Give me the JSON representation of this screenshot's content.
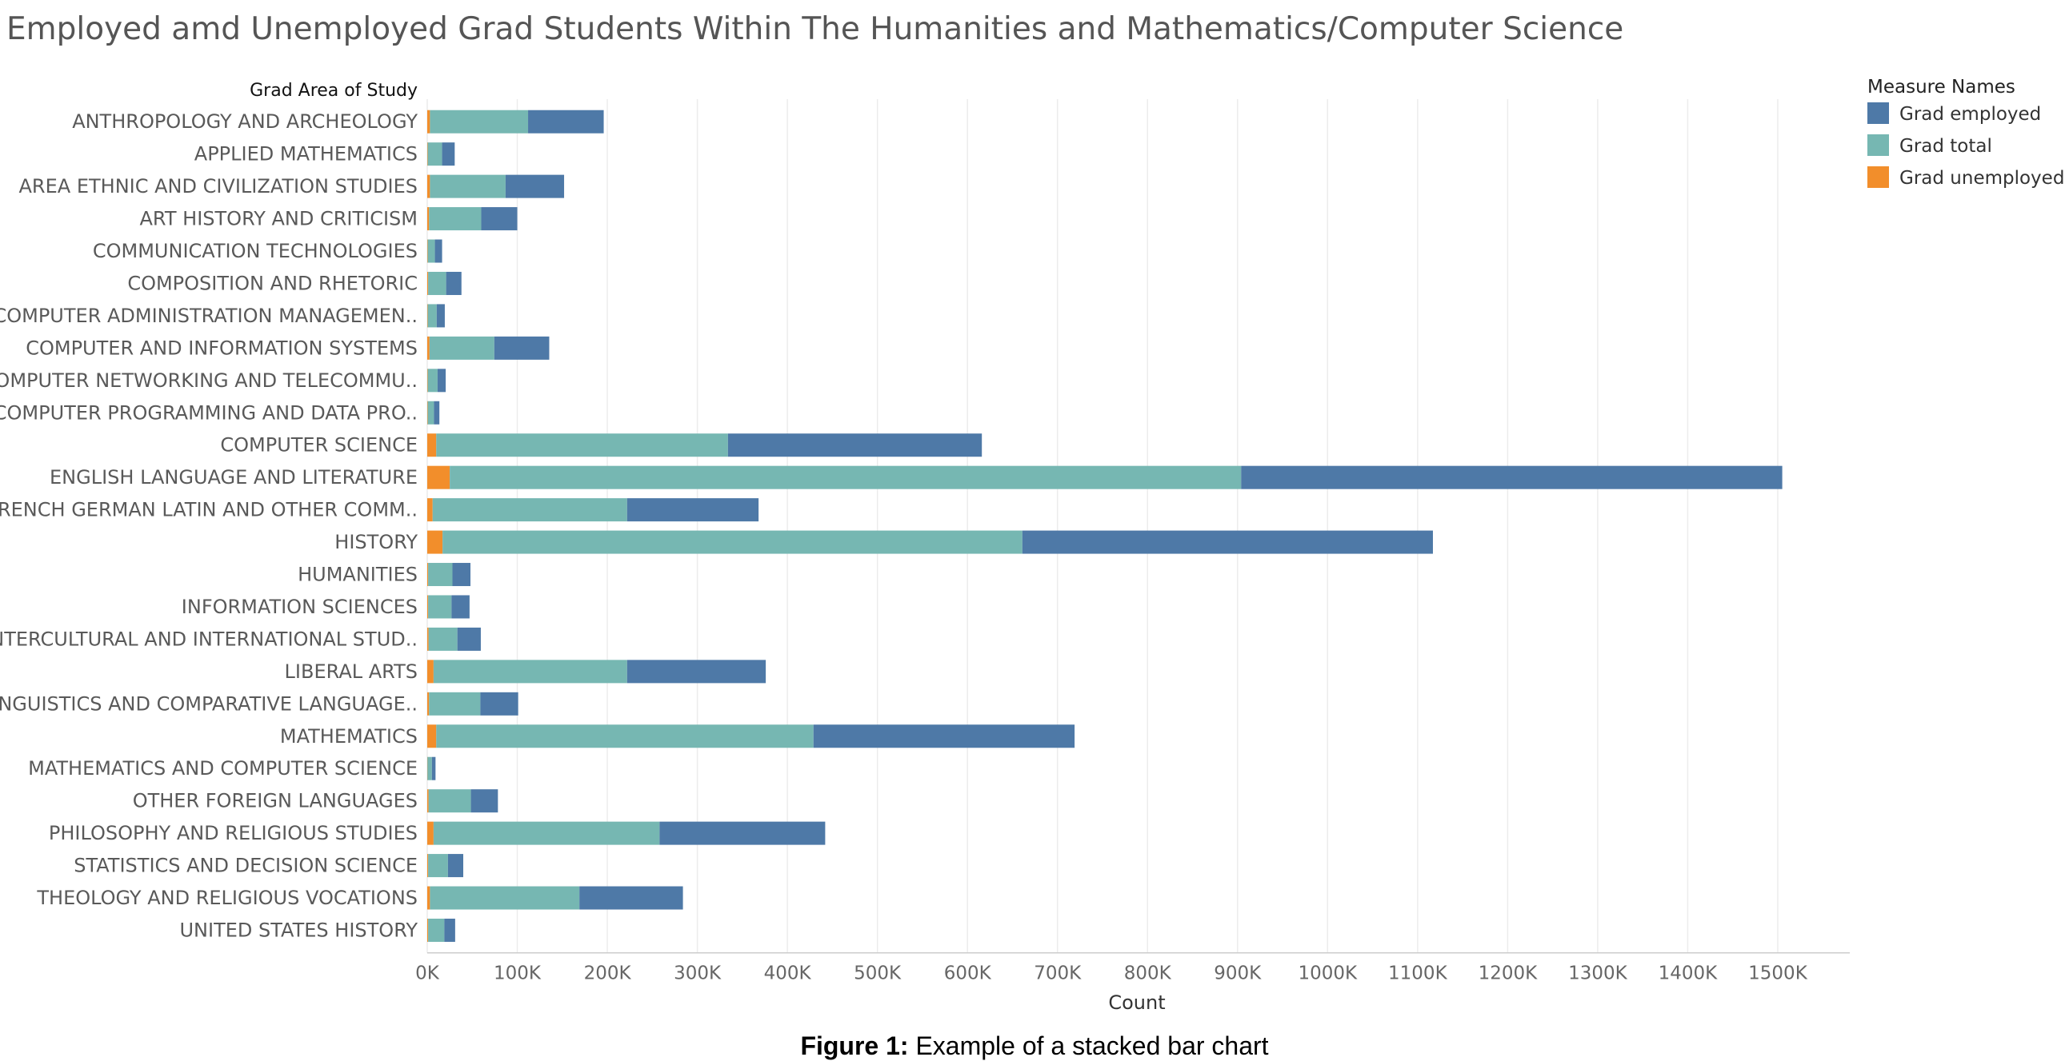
{
  "title": "Employed amd Unemployed Grad Students Within The Humanities and Mathematics/Computer Science",
  "caption": {
    "label": "Figure 1:",
    "text": " Example of a stacked bar chart"
  },
  "colors": {
    "Grad employed": "#4e79a7",
    "Grad total": "#76b7b2",
    "Grad unemployed": "#f28e2b",
    "grid": "#ececec",
    "axis": "#cccccc"
  },
  "chart_data": {
    "type": "bar",
    "orientation": "horizontal",
    "stacked": true,
    "rows_header": "Grad Area of Study",
    "xlabel": "Count",
    "xlim": [
      0,
      1580000
    ],
    "x_ticks": [
      0,
      100000,
      200000,
      300000,
      400000,
      500000,
      600000,
      700000,
      800000,
      900000,
      1000000,
      1100000,
      1200000,
      1300000,
      1400000,
      1500000
    ],
    "x_tick_labels": [
      "0K",
      "100K",
      "200K",
      "300K",
      "400K",
      "500K",
      "600K",
      "700K",
      "800K",
      "900K",
      "1000K",
      "1100K",
      "1200K",
      "1300K",
      "1400K",
      "1500K"
    ],
    "grid": true,
    "legend_title": "Measure Names",
    "legend_position": "top-right",
    "categories": [
      "ANTHROPOLOGY AND ARCHEOLOGY",
      "APPLIED MATHEMATICS",
      "AREA ETHNIC AND CIVILIZATION STUDIES",
      "ART HISTORY AND CRITICISM",
      "COMMUNICATION TECHNOLOGIES",
      "COMPOSITION AND RHETORIC",
      "COMPUTER ADMINISTRATION MANAGEMEN..",
      "COMPUTER AND INFORMATION SYSTEMS",
      "COMPUTER NETWORKING AND TELECOMMU..",
      "COMPUTER PROGRAMMING AND DATA PRO..",
      "COMPUTER SCIENCE",
      "ENGLISH LANGUAGE AND LITERATURE",
      "FRENCH GERMAN LATIN AND OTHER COMM..",
      "HISTORY",
      "HUMANITIES",
      "INFORMATION SCIENCES",
      "INTERCULTURAL AND INTERNATIONAL STUD..",
      "LIBERAL ARTS",
      "LINGUISTICS AND COMPARATIVE LANGUAGE..",
      "MATHEMATICS",
      "MATHEMATICS AND COMPUTER SCIENCE",
      "OTHER FOREIGN LANGUAGES",
      "PHILOSOPHY AND RELIGIOUS STUDIES",
      "STATISTICS AND DECISION SCIENCE",
      "THEOLOGY AND RELIGIOUS VOCATIONS",
      "UNITED STATES HISTORY"
    ],
    "series": [
      {
        "name": "Grad unemployed",
        "values": [
          3000,
          500,
          3000,
          2000,
          500,
          1000,
          500,
          2500,
          500,
          500,
          10000,
          25000,
          6000,
          17000,
          1000,
          1000,
          1500,
          7000,
          2000,
          10000,
          200,
          1500,
          7000,
          1000,
          3000,
          1000
        ]
      },
      {
        "name": "Grad total",
        "values": [
          109000,
          16000,
          84000,
          58000,
          8000,
          20000,
          10000,
          72000,
          11000,
          7000,
          324000,
          879000,
          216000,
          644000,
          27000,
          26000,
          32000,
          215000,
          57000,
          419000,
          5000,
          47000,
          251000,
          22000,
          166000,
          18000
        ]
      },
      {
        "name": "Grad employed",
        "values": [
          84000,
          14000,
          65000,
          40000,
          8000,
          17000,
          9000,
          61000,
          9000,
          6000,
          282000,
          601000,
          146000,
          456000,
          20000,
          20000,
          26000,
          154000,
          42000,
          290000,
          4000,
          30000,
          184000,
          17000,
          115000,
          12000
        ]
      }
    ],
    "legend_order": [
      "Grad employed",
      "Grad total",
      "Grad unemployed"
    ]
  }
}
